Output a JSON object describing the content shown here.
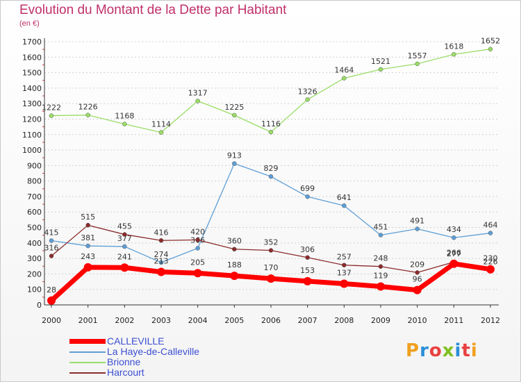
{
  "header": {
    "title": "Evolution du Montant de la Dette par Habitant",
    "unit": "(en €)"
  },
  "brand": {
    "letters": [
      "P",
      "r",
      "o",
      "x",
      "i",
      "t",
      "i"
    ],
    "colors": [
      "#f0a020",
      "#2a8fd8",
      "#e84040",
      "#80c020",
      "#2a8fd8",
      "#e84040",
      "#f0a020"
    ]
  },
  "chart_data": {
    "type": "line",
    "x": [
      "2000",
      "2001",
      "2002",
      "2003",
      "2004",
      "2005",
      "2006",
      "2007",
      "2008",
      "2009",
      "2010",
      "2011",
      "2012"
    ],
    "ylim": [
      0,
      1700
    ],
    "yticks": [
      0,
      100,
      200,
      300,
      400,
      500,
      600,
      700,
      800,
      900,
      1000,
      1100,
      1200,
      1300,
      1400,
      1500,
      1600,
      1700
    ],
    "grid": "horizontal dashed",
    "legend": "bottom-left",
    "series": [
      {
        "name": "CALLEVILLE",
        "color": "#ff0000",
        "values": [
          28,
          243,
          241,
          213,
          205,
          188,
          170,
          153,
          137,
          119,
          96,
          266,
          230
        ]
      },
      {
        "name": "La Haye-de-Calleville",
        "color": "#5d9ed6",
        "values": [
          415,
          381,
          377,
          274,
          366,
          913,
          829,
          699,
          641,
          451,
          491,
          434,
          464
        ]
      },
      {
        "name": "Brionne",
        "color": "#99dd66",
        "values": [
          1222,
          1226,
          1168,
          1114,
          1317,
          1225,
          1116,
          1326,
          1464,
          1521,
          1557,
          1618,
          1652
        ]
      },
      {
        "name": "Harcourt",
        "color": "#8b2a2a",
        "values": [
          316,
          515,
          455,
          416,
          420,
          360,
          352,
          306,
          257,
          248,
          209,
          277,
          226
        ]
      }
    ]
  }
}
